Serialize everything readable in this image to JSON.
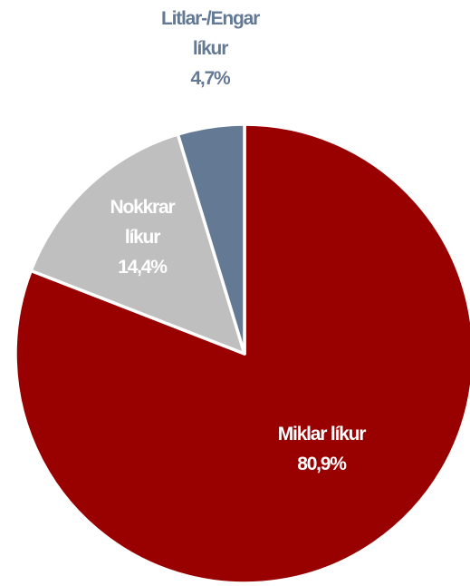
{
  "chart_data": {
    "type": "pie",
    "categories": [
      "Miklar líkur",
      "Nokkrar líkur",
      "Litlar-/Engar líkur"
    ],
    "values": [
      80.9,
      14.4,
      4.7
    ],
    "value_labels": [
      "80,9%",
      "14,4%",
      "4,7%"
    ],
    "colors": [
      "#990000",
      "#bfbfbf",
      "#647a94"
    ]
  }
}
